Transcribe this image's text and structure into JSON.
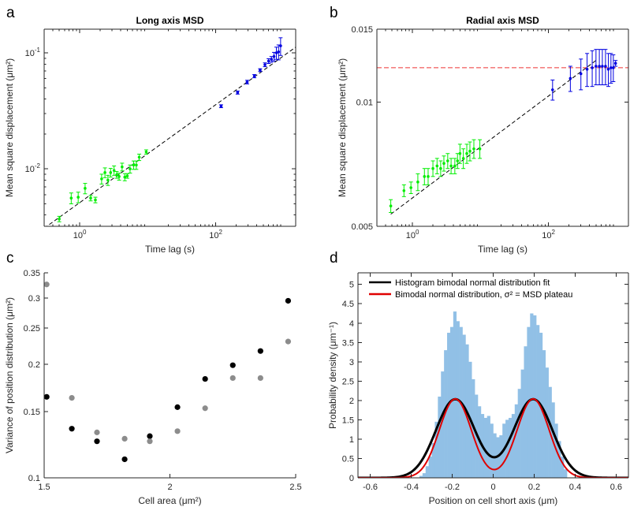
{
  "panels": {
    "a": {
      "label": "a",
      "title": "Long axis MSD"
    },
    "b": {
      "label": "b",
      "title": "Radial axis MSD"
    },
    "c": {
      "label": "c"
    },
    "d": {
      "label": "d"
    }
  },
  "colors": {
    "green": "#00ee00",
    "blue": "#0000e0",
    "dash": "#000000",
    "plateau": "#ee3333",
    "black_pts": "#000000",
    "gray_pts": "#8c8c8c",
    "hist": "#91c0e6",
    "fit_black": "#000000",
    "fit_red": "#e00000"
  },
  "chart_data": [
    {
      "id": "a",
      "type": "scatter",
      "title": "Long axis MSD",
      "xlabel": "Time lag (s)",
      "ylabel": "Mean square displacement (μm²)",
      "xscale": "log",
      "yscale": "log",
      "xlim": [
        0.3,
        1500
      ],
      "ylim": [
        0.0032,
        0.16
      ],
      "xticks": [
        {
          "v": 1,
          "b": "10",
          "e": "0"
        },
        {
          "v": 100,
          "b": "10",
          "e": "2"
        }
      ],
      "yticks": [
        {
          "v": 0.01,
          "b": "10",
          "e": "-2"
        },
        {
          "v": 0.1,
          "b": "10",
          "e": "-1"
        }
      ],
      "fit_line": {
        "x": [
          0.3,
          1500
        ],
        "y": [
          0.00308,
          0.112
        ]
      },
      "series": [
        {
          "color_key": "green",
          "points": [
            [
              0.5,
              0.0037,
              0.0002
            ],
            [
              0.75,
              0.0056,
              0.0006
            ],
            [
              0.95,
              0.0057,
              0.0006
            ],
            [
              1.2,
              0.0068,
              0.0007
            ],
            [
              1.45,
              0.0056,
              0.0003
            ],
            [
              1.7,
              0.0054,
              0.0003
            ],
            [
              2.1,
              0.0082,
              0.0008
            ],
            [
              2.35,
              0.0093,
              0.0009
            ],
            [
              2.6,
              0.008,
              0.0008
            ],
            [
              2.85,
              0.0093,
              0.0008
            ],
            [
              3.2,
              0.0097,
              0.0009
            ],
            [
              3.5,
              0.0089,
              0.0006
            ],
            [
              3.8,
              0.0086,
              0.0006
            ],
            [
              4.2,
              0.0104,
              0.0008
            ],
            [
              4.6,
              0.0085,
              0.0006
            ],
            [
              5.0,
              0.0087,
              0.0004
            ],
            [
              5.5,
              0.01,
              0.0008
            ],
            [
              6.2,
              0.0108,
              0.0009
            ],
            [
              6.8,
              0.0108,
              0.0009
            ],
            [
              7.5,
              0.0126,
              0.0008
            ],
            [
              9.5,
              0.014,
              0.0006
            ]
          ]
        },
        {
          "color_key": "blue",
          "points": [
            [
              120,
              0.0347,
              0.001
            ],
            [
              210,
              0.0455,
              0.0014
            ],
            [
              290,
              0.056,
              0.002
            ],
            [
              370,
              0.063,
              0.002
            ],
            [
              450,
              0.071,
              0.002
            ],
            [
              530,
              0.079,
              0.003
            ],
            [
              600,
              0.085,
              0.004
            ],
            [
              660,
              0.088,
              0.005
            ],
            [
              720,
              0.093,
              0.008
            ],
            [
              780,
              0.1,
              0.012
            ],
            [
              840,
              0.102,
              0.015
            ],
            [
              900,
              0.115,
              0.02
            ]
          ]
        }
      ]
    },
    {
      "id": "b",
      "type": "scatter",
      "title": "Radial axis MSD",
      "xlabel": "Time lag (s)",
      "ylabel": "Mean square displacement (μm²)",
      "xscale": "log",
      "yscale": "log",
      "xlim": [
        0.3,
        1500
      ],
      "ylim": [
        0.005,
        0.015
      ],
      "xticks": [
        {
          "v": 1,
          "b": "10",
          "e": "0"
        },
        {
          "v": 100,
          "b": "10",
          "e": "2"
        }
      ],
      "yticks": [
        {
          "v": 0.005,
          "t": "0.005"
        },
        {
          "v": 0.01,
          "t": "0.01"
        },
        {
          "v": 0.015,
          "t": "0.015"
        }
      ],
      "fit_line": {
        "x": [
          0.48,
          500
        ],
        "y": [
          0.00535,
          0.0126
        ]
      },
      "plateau": 0.0121,
      "series": [
        {
          "color_key": "green",
          "points": [
            [
              0.48,
              0.0056,
              0.0002
            ],
            [
              0.75,
              0.0061,
              0.0002
            ],
            [
              0.95,
              0.0062,
              0.0002
            ],
            [
              1.2,
              0.0064,
              0.0003
            ],
            [
              1.5,
              0.0066,
              0.0003
            ],
            [
              1.7,
              0.0066,
              0.0003
            ],
            [
              2.0,
              0.0069,
              0.0003
            ],
            [
              2.3,
              0.007,
              0.0003
            ],
            [
              2.6,
              0.0069,
              0.0003
            ],
            [
              2.9,
              0.0071,
              0.0003
            ],
            [
              3.3,
              0.0072,
              0.0003
            ],
            [
              3.7,
              0.007,
              0.0003
            ],
            [
              4.2,
              0.007,
              0.0003
            ],
            [
              4.6,
              0.0072,
              0.0003
            ],
            [
              5.0,
              0.0075,
              0.0004
            ],
            [
              5.6,
              0.0073,
              0.0004
            ],
            [
              6.3,
              0.0075,
              0.0004
            ],
            [
              7.0,
              0.0076,
              0.0004
            ],
            [
              8.0,
              0.0077,
              0.0004
            ],
            [
              9.8,
              0.0077,
              0.0004
            ]
          ]
        },
        {
          "color_key": "blue",
          "points": [
            [
              115,
              0.0107,
              0.0006
            ],
            [
              210,
              0.0114,
              0.0008
            ],
            [
              300,
              0.0117,
              0.001
            ],
            [
              370,
              0.012,
              0.0011
            ],
            [
              440,
              0.0121,
              0.0012
            ],
            [
              500,
              0.0122,
              0.0012
            ],
            [
              560,
              0.0122,
              0.0012
            ],
            [
              620,
              0.0122,
              0.0012
            ],
            [
              690,
              0.0122,
              0.0012
            ],
            [
              760,
              0.012,
              0.0011
            ],
            [
              830,
              0.0121,
              0.001
            ],
            [
              900,
              0.0121,
              0.0009
            ],
            [
              970,
              0.0124,
              0.0002
            ]
          ]
        }
      ]
    },
    {
      "id": "c",
      "type": "scatter",
      "xlabel": "Cell area (μm²)",
      "ylabel": "Variance of position distribution (μm²)",
      "yscale": "log",
      "xlim": [
        1.5,
        2.5
      ],
      "ylim": [
        0.1,
        0.35
      ],
      "xticks": [
        {
          "v": 1.5,
          "t": "1.5"
        },
        {
          "v": 2,
          "t": "2"
        },
        {
          "v": 2.5,
          "t": "2.5"
        }
      ],
      "yticks": [
        {
          "v": 0.1,
          "t": "0.1"
        },
        {
          "v": 0.15,
          "t": "0.15"
        },
        {
          "v": 0.2,
          "t": "0.2"
        },
        {
          "v": 0.25,
          "t": "0.25"
        },
        {
          "v": 0.3,
          "t": "0.3"
        },
        {
          "v": 0.35,
          "t": "0.35"
        }
      ],
      "series": [
        {
          "color_key": "black_pts",
          "points": [
            [
              1.51,
              0.164
            ],
            [
              1.61,
              0.135
            ],
            [
              1.71,
              0.125
            ],
            [
              1.82,
              0.112
            ],
            [
              1.92,
              0.129
            ],
            [
              2.03,
              0.154
            ],
            [
              2.14,
              0.183
            ],
            [
              2.25,
              0.199
            ],
            [
              2.36,
              0.217
            ],
            [
              2.47,
              0.295
            ]
          ]
        },
        {
          "color_key": "gray_pts",
          "points": [
            [
              1.51,
              0.326
            ],
            [
              1.61,
              0.163
            ],
            [
              1.71,
              0.132
            ],
            [
              1.82,
              0.127
            ],
            [
              1.92,
              0.125
            ],
            [
              2.03,
              0.133
            ],
            [
              2.14,
              0.153
            ],
            [
              2.25,
              0.184
            ],
            [
              2.36,
              0.184
            ],
            [
              2.47,
              0.23
            ]
          ]
        }
      ]
    },
    {
      "id": "d",
      "type": "bar",
      "xlabel": "Position on cell short axis (μm)",
      "ylabel": "Probability density (μm⁻¹)",
      "xlim": [
        -0.66,
        0.66
      ],
      "ylim": [
        0,
        5.3
      ],
      "xticks": [
        {
          "v": -0.6,
          "t": "-0.6"
        },
        {
          "v": -0.4,
          "t": "-0.4"
        },
        {
          "v": -0.2,
          "t": "-0.2"
        },
        {
          "v": 0,
          "t": "0"
        },
        {
          "v": 0.2,
          "t": "0.2"
        },
        {
          "v": 0.4,
          "t": "0.4"
        },
        {
          "v": 0.6,
          "t": "0.6"
        }
      ],
      "yticks": [
        {
          "v": 0,
          "t": "0"
        },
        {
          "v": 0.5,
          "t": "0.5"
        },
        {
          "v": 1,
          "t": "1"
        },
        {
          "v": 1.5,
          "t": "1.5"
        },
        {
          "v": 2,
          "t": "2"
        },
        {
          "v": 2.5,
          "t": "2.5"
        },
        {
          "v": 3,
          "t": "3"
        },
        {
          "v": 3.5,
          "t": "3.5"
        },
        {
          "v": 4,
          "t": "4"
        },
        {
          "v": 4.5,
          "t": "4.5"
        },
        {
          "v": 5,
          "t": "5"
        }
      ],
      "histogram": {
        "bin_start": -0.36,
        "bin_width": 0.015,
        "values": [
          0.05,
          0.12,
          0.3,
          0.55,
          0.9,
          1.45,
          2.1,
          2.75,
          3.3,
          3.75,
          3.9,
          4.3,
          4.05,
          3.9,
          3.7,
          3.45,
          3.0,
          2.55,
          2.15,
          1.85,
          1.65,
          1.55,
          1.6,
          1.4,
          1.15,
          1.05,
          1.1,
          1.4,
          1.5,
          1.55,
          1.65,
          1.9,
          2.3,
          2.8,
          3.4,
          3.9,
          4.25,
          4.2,
          3.95,
          3.75,
          3.3,
          2.85,
          2.35,
          1.95,
          1.4,
          0.95,
          0.55,
          0.22
        ]
      },
      "curves": [
        {
          "name": "Histogram bimodal normal distribution fit",
          "color_key": "fit_black",
          "mu": 0.195,
          "sigma": 0.0942,
          "mu_left": -0.185,
          "amp": 0.96,
          "width": 3
        },
        {
          "name": "Bimodal normal distribution, σ² = MSD plateau",
          "color_key": "fit_red",
          "mu": 0.195,
          "sigma": 0.0782,
          "mu_left": -0.185,
          "amp": 0.8,
          "width": 2
        }
      ],
      "legend": [
        {
          "label": "Histogram bimodal normal distribution fit",
          "color_key": "fit_black"
        },
        {
          "label": "Bimodal normal distribution, σ² = MSD plateau",
          "color_key": "fit_red"
        }
      ]
    }
  ]
}
